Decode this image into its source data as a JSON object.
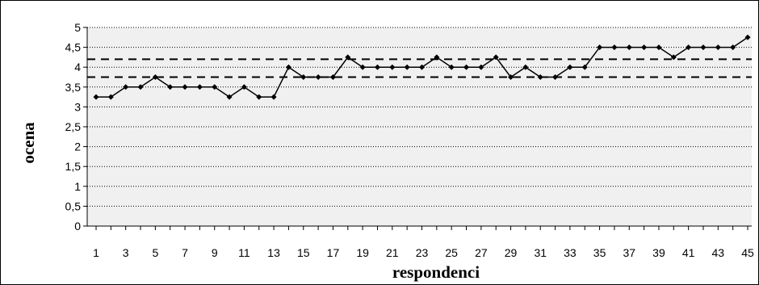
{
  "chart_data": {
    "type": "line",
    "title": "",
    "xlabel": "respondenci",
    "ylabel": "ocena",
    "x": [
      1,
      2,
      3,
      4,
      5,
      6,
      7,
      8,
      9,
      10,
      11,
      12,
      13,
      14,
      15,
      16,
      17,
      18,
      19,
      20,
      21,
      22,
      23,
      24,
      25,
      26,
      27,
      28,
      29,
      30,
      31,
      32,
      33,
      34,
      35,
      36,
      37,
      38,
      39,
      40,
      41,
      42,
      43,
      44,
      45
    ],
    "x_tick_labels": [
      "1",
      "3",
      "5",
      "7",
      "9",
      "11",
      "13",
      "15",
      "17",
      "19",
      "21",
      "23",
      "25",
      "27",
      "29",
      "31",
      "33",
      "35",
      "37",
      "39",
      "41",
      "43",
      "45"
    ],
    "y_tick_labels": [
      "0",
      "0,5",
      "1",
      "1,5",
      "2",
      "2,5",
      "3",
      "3,5",
      "4",
      "4,5",
      "5"
    ],
    "ylim": [
      0,
      5
    ],
    "grid": true,
    "series": [
      {
        "values": [
          3.25,
          3.25,
          3.5,
          3.5,
          3.75,
          3.5,
          3.5,
          3.5,
          3.5,
          3.25,
          3.5,
          3.25,
          3.25,
          4,
          3.75,
          3.75,
          3.75,
          4.25,
          4,
          4,
          4,
          4,
          4,
          4.25,
          4,
          4,
          4,
          4.25,
          3.75,
          4,
          3.75,
          3.75,
          4,
          4,
          4.5,
          4.5,
          4.5,
          4.5,
          4.5,
          4.25,
          4.5,
          4.5,
          4.5,
          4.5,
          4.75
        ]
      }
    ],
    "reference_lines": [
      {
        "style": "dashed",
        "value": 3.75
      },
      {
        "style": "dashed",
        "value": 4.2
      }
    ],
    "colors": {
      "line": "#000000",
      "plot_bg": "#f0f0f0",
      "grid": "#000000"
    }
  }
}
